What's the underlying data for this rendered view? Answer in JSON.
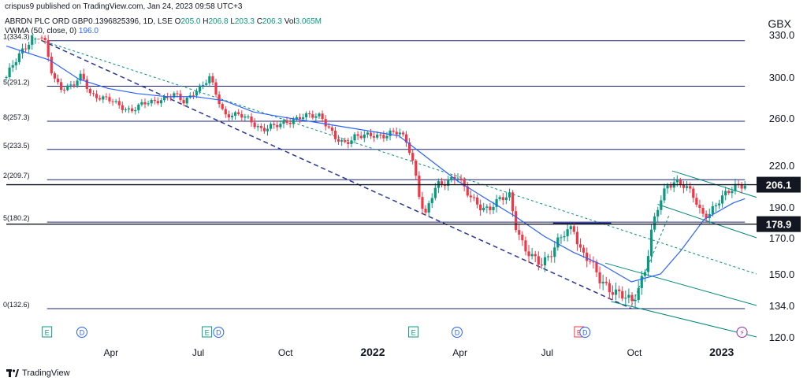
{
  "header": {
    "publisher": "crispus9 published on TradingView.com, Jan 24, 2023 09:58 UTC+3",
    "symbol": "ABRDN PLC ORD GBP0.1396825396, 1D, LSE",
    "open_label": "O",
    "open": "205.0",
    "high_label": "H",
    "high": "206.8",
    "low_label": "L",
    "low": "203.3",
    "close_label": "C",
    "close": "206.3",
    "vol_label": "Vol",
    "volume": "3.065M",
    "indicator": "VWMA (50, close, 0)",
    "indicator_value": "196.0",
    "currency": "GBX"
  },
  "footer": {
    "brand": "TradingView"
  },
  "colors": {
    "up": "#089981",
    "down": "#f23645",
    "vwma": "#2962ff",
    "fib": "#1a237e",
    "trend": "#283593",
    "channel": "#00897b",
    "price_label_bg": "#131722"
  },
  "chart_data": {
    "type": "candlestick",
    "title": "",
    "ylabel": "",
    "ylim": [
      120,
      340
    ],
    "y_ticks": [
      "330.0",
      "300.0",
      "260.0",
      "220.0",
      "190.0",
      "170.0",
      "150.0",
      "134.0",
      "120.0"
    ],
    "y_tick_values": [
      330,
      300,
      260,
      220,
      190,
      170,
      150,
      134,
      120
    ],
    "x_ticks": [
      {
        "label": "Apr",
        "t": 3.6,
        "bold": false
      },
      {
        "label": "Jul",
        "t": 6.6,
        "bold": false
      },
      {
        "label": "Oct",
        "t": 9.6,
        "bold": false
      },
      {
        "label": "2022",
        "t": 12.6,
        "bold": true
      },
      {
        "label": "Apr",
        "t": 15.6,
        "bold": false
      },
      {
        "label": "Jul",
        "t": 18.6,
        "bold": false
      },
      {
        "label": "Oct",
        "t": 21.6,
        "bold": false
      },
      {
        "label": "2023",
        "t": 24.6,
        "bold": true
      }
    ],
    "fib_levels": [
      {
        "label": "1(334.3)",
        "value": 334.3
      },
      {
        "label": "5(291.2)",
        "value": 291.2
      },
      {
        "label": "8(257.3)",
        "value": 257.3
      },
      {
        "label": "5(233.5)",
        "value": 233.5
      },
      {
        "label": "2(209.7)",
        "value": 209.7
      },
      {
        "label": "5(180.2)",
        "value": 180.2
      },
      {
        "label": "0(132.6)",
        "value": 132.6
      }
    ],
    "horizontal_levels": [
      {
        "label": "206.1",
        "value": 206.1
      },
      {
        "label": "178.9",
        "value": 178.9
      }
    ],
    "events": [
      {
        "label": "E",
        "t": 1.4,
        "kind": "earnings"
      },
      {
        "label": "D",
        "t": 2.6,
        "kind": "dividend"
      },
      {
        "label": "E",
        "t": 6.9,
        "kind": "earnings"
      },
      {
        "label": "D",
        "t": 7.3,
        "kind": "dividend"
      },
      {
        "label": "E",
        "t": 14.0,
        "kind": "earnings"
      },
      {
        "label": "D",
        "t": 15.5,
        "kind": "dividend"
      },
      {
        "label": "E",
        "t": 19.7,
        "kind": "earnings-red"
      },
      {
        "label": "D",
        "t": 19.9,
        "kind": "dividend"
      },
      {
        "label": "⚡",
        "t": 25.3,
        "kind": "split"
      }
    ],
    "price_path": [
      [
        0.0,
        300
      ],
      [
        0.6,
        320
      ],
      [
        1.0,
        333
      ],
      [
        1.3,
        325
      ],
      [
        1.6,
        300
      ],
      [
        1.9,
        290
      ],
      [
        2.3,
        292
      ],
      [
        2.6,
        300
      ],
      [
        2.9,
        284
      ],
      [
        3.3,
        280
      ],
      [
        3.9,
        272
      ],
      [
        4.3,
        268
      ],
      [
        4.8,
        274
      ],
      [
        5.3,
        279
      ],
      [
        5.8,
        282
      ],
      [
        6.1,
        276
      ],
      [
        6.4,
        285
      ],
      [
        6.8,
        292
      ],
      [
        7.0,
        299
      ],
      [
        7.2,
        285
      ],
      [
        7.5,
        264
      ],
      [
        8.0,
        262
      ],
      [
        8.4,
        259
      ],
      [
        8.8,
        250
      ],
      [
        9.2,
        252
      ],
      [
        9.6,
        258
      ],
      [
        10.0,
        259
      ],
      [
        10.4,
        262
      ],
      [
        10.8,
        264
      ],
      [
        11.0,
        255
      ],
      [
        11.3,
        242
      ],
      [
        11.6,
        238
      ],
      [
        12.0,
        246
      ],
      [
        12.4,
        244
      ],
      [
        12.8,
        245
      ],
      [
        13.2,
        248
      ],
      [
        13.5,
        247
      ],
      [
        13.8,
        238
      ],
      [
        14.0,
        222
      ],
      [
        14.2,
        200
      ],
      [
        14.4,
        183
      ],
      [
        14.6,
        195
      ],
      [
        14.8,
        205
      ],
      [
        15.2,
        210
      ],
      [
        15.5,
        213
      ],
      [
        15.8,
        200
      ],
      [
        16.2,
        193
      ],
      [
        16.6,
        188
      ],
      [
        17.0,
        195
      ],
      [
        17.3,
        200
      ],
      [
        17.5,
        180
      ],
      [
        17.8,
        163
      ],
      [
        18.1,
        158
      ],
      [
        18.4,
        157
      ],
      [
        18.8,
        163
      ],
      [
        19.2,
        172
      ],
      [
        19.5,
        178
      ],
      [
        19.7,
        165
      ],
      [
        20.0,
        158
      ],
      [
        20.4,
        147
      ],
      [
        20.8,
        143
      ],
      [
        21.2,
        138
      ],
      [
        21.5,
        135
      ],
      [
        21.7,
        142
      ],
      [
        22.0,
        155
      ],
      [
        22.2,
        175
      ],
      [
        22.4,
        188
      ],
      [
        22.7,
        205
      ],
      [
        23.0,
        210
      ],
      [
        23.3,
        205
      ],
      [
        23.6,
        198
      ],
      [
        23.9,
        186
      ],
      [
        24.2,
        187
      ],
      [
        24.5,
        193
      ],
      [
        24.8,
        200
      ],
      [
        25.1,
        207
      ],
      [
        25.4,
        206.3
      ]
    ],
    "vwma_path": [
      [
        0.0,
        322
      ],
      [
        1.5,
        312
      ],
      [
        2.5,
        298
      ],
      [
        3.5,
        289
      ],
      [
        4.5,
        284
      ],
      [
        5.5,
        281
      ],
      [
        6.5,
        281
      ],
      [
        7.5,
        277
      ],
      [
        8.5,
        266
      ],
      [
        9.5,
        261
      ],
      [
        10.5,
        257
      ],
      [
        11.5,
        253
      ],
      [
        12.5,
        249
      ],
      [
        13.5,
        245
      ],
      [
        14.5,
        226
      ],
      [
        15.5,
        209
      ],
      [
        16.5,
        196
      ],
      [
        17.5,
        184
      ],
      [
        18.5,
        171
      ],
      [
        19.5,
        162
      ],
      [
        20.5,
        155
      ],
      [
        21.5,
        146
      ],
      [
        22.5,
        150
      ],
      [
        23.2,
        163
      ],
      [
        24.0,
        182
      ],
      [
        25.0,
        193
      ],
      [
        25.4,
        196
      ]
    ]
  }
}
